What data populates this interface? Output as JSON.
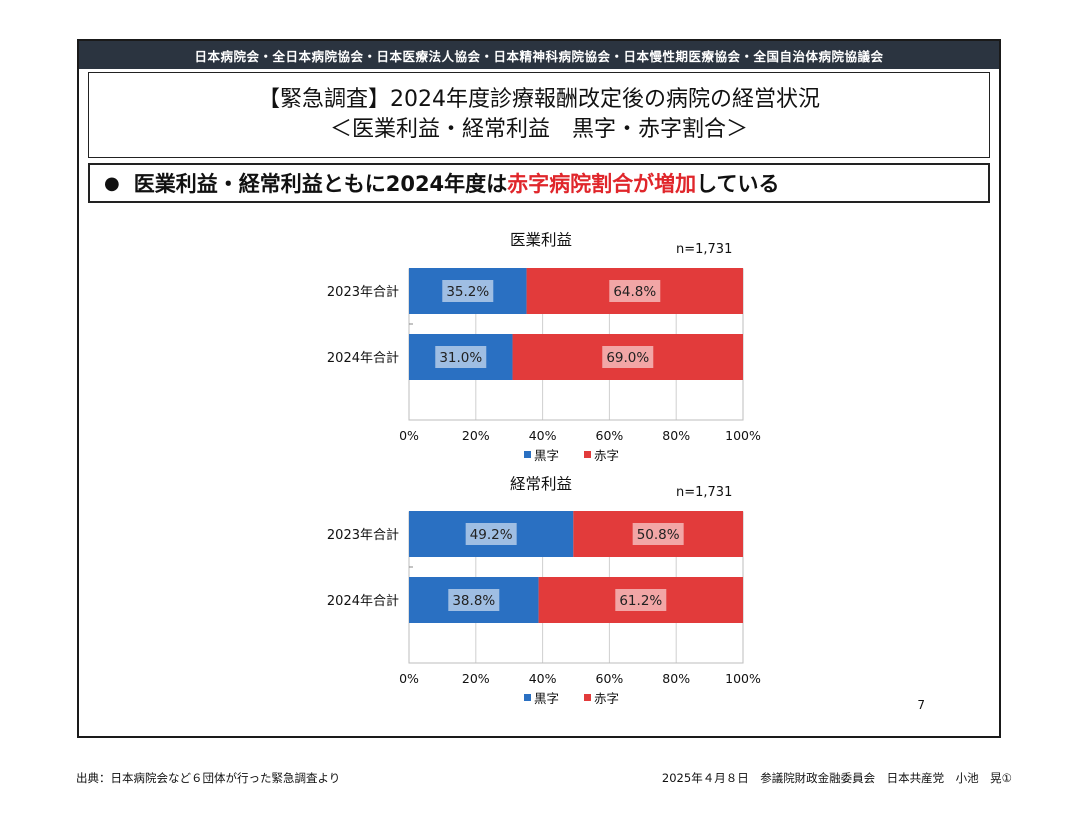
{
  "banner": "日本病院会・全日本病院協会・日本医療法人協会・日本精神科病院協会・日本慢性期医療協会・全国自治体病院協議会",
  "title": {
    "line1": "【緊急調査】2024年度診療報酬改定後の病院の経営状況",
    "line2": "＜医業利益・経常利益　黒字・赤字割合＞"
  },
  "headline": {
    "bullet": "●",
    "part1": "医業利益・経常利益ともに2024年度は",
    "part2": "赤字病院割合が増加",
    "part3": "している",
    "highlight_color": "#e0262b"
  },
  "chart_data": [
    {
      "type": "bar",
      "orientation": "horizontal-stacked-100",
      "title": "医業利益",
      "n_label": "n=1,731",
      "categories": [
        "2023年合計",
        "2024年合計"
      ],
      "series": [
        {
          "name": "黒字",
          "color": "#2a70c2",
          "values": [
            35.2,
            31.0
          ],
          "labels": [
            "35.2%",
            "31.0%"
          ]
        },
        {
          "name": "赤字",
          "color": "#e23b3b",
          "values": [
            64.8,
            69.0
          ],
          "labels": [
            "64.8%",
            "69.0%"
          ]
        }
      ],
      "xlim": [
        0,
        100
      ],
      "xticks": [
        "0%",
        "20%",
        "40%",
        "60%",
        "80%",
        "100%"
      ],
      "grid": true,
      "legend": "bottom"
    },
    {
      "type": "bar",
      "orientation": "horizontal-stacked-100",
      "title": "経常利益",
      "n_label": "n=1,731",
      "categories": [
        "2023年合計",
        "2024年合計"
      ],
      "series": [
        {
          "name": "黒字",
          "color": "#2a70c2",
          "values": [
            49.2,
            38.8
          ],
          "labels": [
            "49.2%",
            "38.8%"
          ]
        },
        {
          "name": "赤字",
          "color": "#e23b3b",
          "values": [
            50.8,
            61.2
          ],
          "labels": [
            "50.8%",
            "61.2%"
          ]
        }
      ],
      "xlim": [
        0,
        100
      ],
      "xticks": [
        "0%",
        "20%",
        "40%",
        "60%",
        "80%",
        "100%"
      ],
      "grid": true,
      "legend": "bottom"
    }
  ],
  "page_number": "7",
  "footer": {
    "source": "出典：日本病院会など６団体が行った緊急調査より",
    "meeting": "2025年４月８日　参議院財政金融委員会　日本共産党　小池　晃①"
  }
}
